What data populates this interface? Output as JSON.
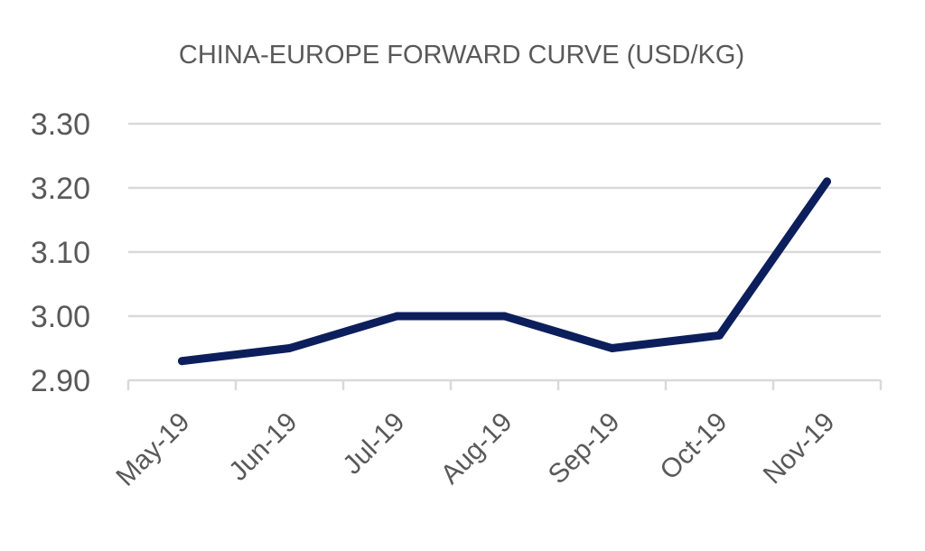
{
  "chart_data": {
    "type": "line",
    "title": "CHINA-EUROPE FORWARD CURVE (USD/KG)",
    "xlabel": "",
    "ylabel": "",
    "categories": [
      "May-19",
      "Jun-19",
      "Jul-19",
      "Aug-19",
      "Sep-19",
      "Oct-19",
      "Nov-19"
    ],
    "series": [
      {
        "values": [
          2.93,
          2.95,
          3.0,
          3.0,
          2.95,
          2.97,
          3.21
        ]
      }
    ],
    "ylim": [
      2.9,
      3.3
    ],
    "yticks": [
      "2.90",
      "3.00",
      "3.10",
      "3.20",
      "3.30"
    ],
    "grid": true,
    "legend": "none",
    "colors": {
      "line": "#0c1f5c",
      "grid": "#d9d9d9",
      "text": "#595959"
    }
  }
}
